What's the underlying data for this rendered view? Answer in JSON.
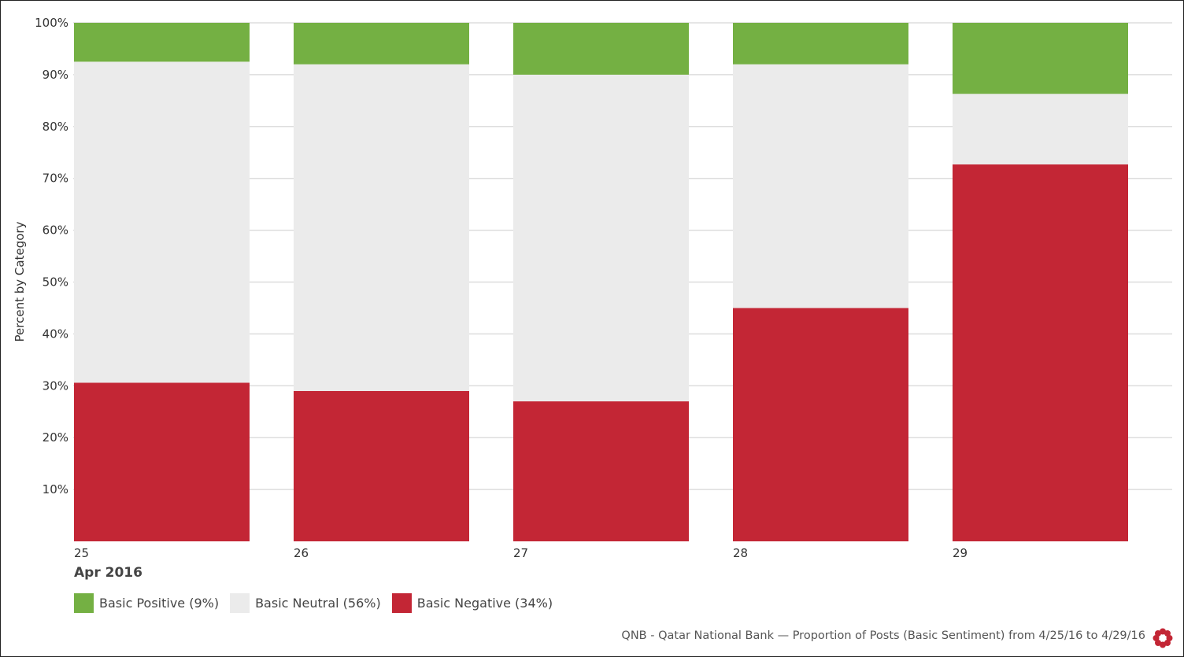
{
  "chart_data": {
    "type": "bar",
    "stacked": true,
    "categories": [
      "25",
      "26",
      "27",
      "28",
      "29"
    ],
    "x_group_label": "Apr 2016",
    "ylabel": "Percent by Category",
    "ylim": [
      0,
      100
    ],
    "yticks": [
      "10%",
      "20%",
      "30%",
      "40%",
      "50%",
      "60%",
      "70%",
      "80%",
      "90%",
      "100%"
    ],
    "grid": true,
    "series": [
      {
        "name": "Basic Negative (34%)",
        "color": "#c32635",
        "values": [
          30.6,
          29.0,
          27.0,
          45.0,
          72.7
        ]
      },
      {
        "name": "Basic Neutral (56%)",
        "color": "#ebebeb",
        "values": [
          61.9,
          63.0,
          63.0,
          47.0,
          13.6
        ]
      },
      {
        "name": "Basic Positive (9%)",
        "color": "#74b043",
        "values": [
          7.5,
          8.0,
          10.0,
          8.0,
          13.7
        ]
      }
    ]
  },
  "legend": [
    {
      "label": "Basic Positive (9%)",
      "color": "#74b043"
    },
    {
      "label": "Basic Neutral (56%)",
      "color": "#ebebeb"
    },
    {
      "label": "Basic Negative (34%)",
      "color": "#c32635"
    }
  ],
  "footer": {
    "caption": "QNB - Qatar National Bank — Proportion of Posts (Basic Sentiment) from 4/25/16 to 4/29/16",
    "logo_icon": "flower-logo-icon",
    "logo_color": "#c32635"
  }
}
